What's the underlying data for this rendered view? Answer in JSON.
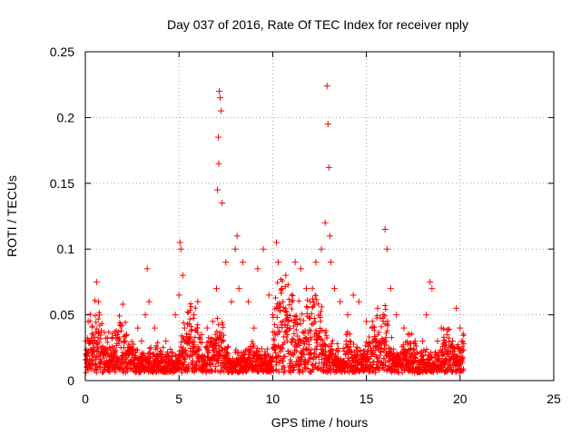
{
  "chart_data": {
    "type": "scatter",
    "title": "Day 037 of 2016, Rate Of TEC Index for receiver nply",
    "xlabel": "GPS time / hours",
    "ylabel": "ROTI / TECUs",
    "xlim": [
      0,
      25
    ],
    "ylim": [
      0,
      0.25
    ],
    "x_ticks": [
      0,
      5,
      10,
      15,
      20,
      25
    ],
    "x_tick_labels": [
      "0",
      "5",
      "10",
      "15",
      "20",
      "25"
    ],
    "y_ticks": [
      0,
      0.05,
      0.1,
      0.15,
      0.2,
      0.25
    ],
    "y_tick_labels": [
      "0",
      "0.05",
      "0.1",
      "0.15",
      "0.2",
      "0.25"
    ],
    "grid": true,
    "marker": "+",
    "color": "#ff0000",
    "series": [
      {
        "x": [
          0.05,
          0.1,
          0.15,
          0.2,
          0.3,
          0.35,
          0.4,
          0.5,
          0.6,
          0.7,
          0.75,
          0.8,
          1.0,
          1.2,
          1.5,
          1.8,
          2.0,
          2.2,
          2.5,
          2.8,
          3.0,
          3.2,
          3.3,
          3.4,
          3.5,
          3.7,
          4.0,
          4.3,
          4.6,
          4.8,
          5.0,
          5.05,
          5.1,
          5.2,
          5.3,
          5.5,
          5.8,
          6.0,
          6.2,
          6.5,
          6.8,
          7.0,
          7.05,
          7.1,
          7.12,
          7.15,
          7.2,
          7.25,
          7.3,
          7.5,
          7.8,
          8.0,
          8.1,
          8.2,
          8.4,
          8.7,
          9.0,
          9.2,
          9.5,
          9.8,
          10.0,
          10.2,
          10.3,
          10.5,
          10.7,
          11.0,
          11.2,
          11.5,
          11.8,
          12.0,
          12.3,
          12.6,
          12.8,
          12.9,
          12.95,
          13.0,
          13.05,
          13.1,
          13.3,
          13.6,
          14.0,
          14.3,
          14.6,
          15.0,
          15.3,
          15.6,
          15.9,
          16.0,
          16.1,
          16.3,
          16.6,
          17.0,
          17.3,
          17.6,
          18.0,
          18.2,
          18.4,
          18.5,
          18.8,
          19.0,
          19.3,
          19.6,
          19.8,
          20.0,
          20.1
        ],
        "y": [
          0.02,
          0.01,
          0.045,
          0.03,
          0.015,
          0.02,
          0.012,
          0.03,
          0.075,
          0.06,
          0.05,
          0.02,
          0.01,
          0.02,
          0.012,
          0.03,
          0.058,
          0.035,
          0.02,
          0.04,
          0.03,
          0.05,
          0.085,
          0.06,
          0.025,
          0.04,
          0.02,
          0.03,
          0.015,
          0.05,
          0.065,
          0.105,
          0.1,
          0.08,
          0.04,
          0.03,
          0.05,
          0.06,
          0.035,
          0.04,
          0.045,
          0.07,
          0.145,
          0.185,
          0.165,
          0.22,
          0.215,
          0.205,
          0.135,
          0.09,
          0.06,
          0.1,
          0.11,
          0.07,
          0.09,
          0.06,
          0.04,
          0.085,
          0.1,
          0.065,
          0.05,
          0.105,
          0.09,
          0.07,
          0.08,
          0.06,
          0.09,
          0.085,
          0.07,
          0.06,
          0.09,
          0.1,
          0.12,
          0.224,
          0.195,
          0.162,
          0.11,
          0.09,
          0.07,
          0.06,
          0.05,
          0.065,
          0.06,
          0.045,
          0.04,
          0.055,
          0.05,
          0.115,
          0.1,
          0.07,
          0.05,
          0.04,
          0.035,
          0.03,
          0.03,
          0.05,
          0.075,
          0.07,
          0.03,
          0.04,
          0.035,
          0.03,
          0.055,
          0.04,
          0.03
        ]
      }
    ]
  }
}
